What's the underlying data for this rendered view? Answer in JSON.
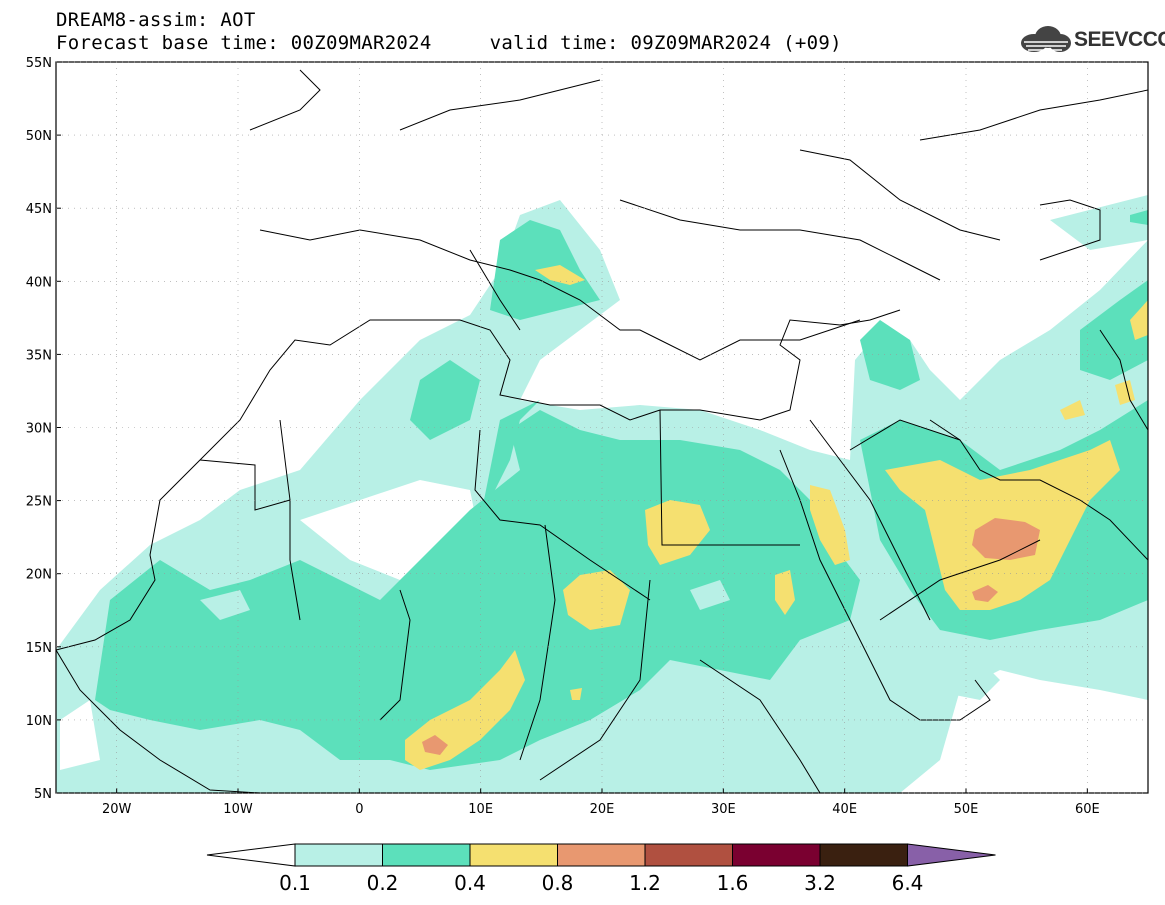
{
  "header": {
    "title_line1": "DREAM8-assim: AOT",
    "forecast_base": "Forecast base time: 00Z09MAR2024",
    "valid_time": "valid time: 09Z09MAR2024 (+09)"
  },
  "logo": {
    "text": "SEEVCCC",
    "icon": "cloud-logo-icon"
  },
  "map": {
    "lon_range": [
      -25,
      65
    ],
    "lat_range": [
      5,
      55
    ],
    "lat_ticks": [
      "55N",
      "50N",
      "45N",
      "40N",
      "35N",
      "30N",
      "25N",
      "20N",
      "15N",
      "10N",
      "5N"
    ],
    "lon_ticks": [
      "20W",
      "10W",
      "0",
      "10E",
      "20E",
      "30E",
      "40E",
      "50E",
      "60E"
    ]
  },
  "colorbar": {
    "labels": [
      "0.1",
      "0.2",
      "0.4",
      "0.8",
      "1.2",
      "1.6",
      "3.2",
      "6.4"
    ],
    "colors": [
      "#ffffff",
      "#b8f0e6",
      "#5ce0bb",
      "#f5e070",
      "#e89870",
      "#b05040",
      "#7a0030",
      "#3a2010",
      "#8860a8"
    ]
  }
}
